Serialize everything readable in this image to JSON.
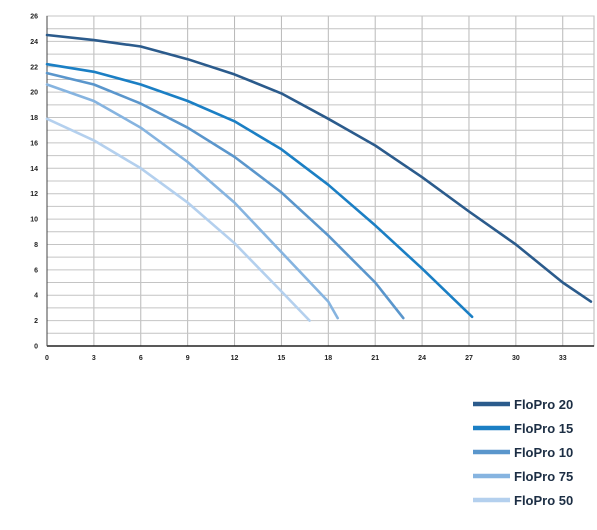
{
  "chart_data": {
    "type": "line",
    "title": "",
    "xlabel": "",
    "ylabel": "",
    "xlim": [
      0,
      35
    ],
    "ylim": [
      0,
      26
    ],
    "xticks": [
      0,
      3,
      6,
      9,
      12,
      15,
      18,
      21,
      24,
      27,
      30,
      33
    ],
    "yticks": [
      0,
      2,
      4,
      6,
      8,
      10,
      12,
      14,
      16,
      18,
      20,
      22,
      24,
      26
    ],
    "grid": true,
    "legend_position": "bottom-right",
    "series": [
      {
        "name": "FloPro 20",
        "color": "#2b5b8c",
        "points": [
          [
            0,
            24.5
          ],
          [
            3,
            24.1
          ],
          [
            6,
            23.6
          ],
          [
            9,
            22.6
          ],
          [
            12,
            21.4
          ],
          [
            15,
            19.9
          ],
          [
            18,
            17.9
          ],
          [
            21,
            15.8
          ],
          [
            24,
            13.3
          ],
          [
            27,
            10.6
          ],
          [
            30,
            8.0
          ],
          [
            33,
            5.0
          ],
          [
            34.8,
            3.5
          ]
        ]
      },
      {
        "name": "FloPro 15",
        "color": "#1b7fc4",
        "points": [
          [
            0,
            22.2
          ],
          [
            3,
            21.6
          ],
          [
            6,
            20.6
          ],
          [
            9,
            19.3
          ],
          [
            12,
            17.7
          ],
          [
            15,
            15.5
          ],
          [
            18,
            12.7
          ],
          [
            21,
            9.5
          ],
          [
            24,
            6.1
          ],
          [
            27.2,
            2.3
          ]
        ]
      },
      {
        "name": "FloPro 10",
        "color": "#5a96cc",
        "points": [
          [
            0,
            21.5
          ],
          [
            3,
            20.6
          ],
          [
            6,
            19.1
          ],
          [
            9,
            17.2
          ],
          [
            12,
            14.9
          ],
          [
            15,
            12.1
          ],
          [
            18,
            8.7
          ],
          [
            21,
            5.0
          ],
          [
            22.8,
            2.2
          ]
        ]
      },
      {
        "name": "FloPro 75",
        "color": "#86b4e0",
        "points": [
          [
            0,
            20.6
          ],
          [
            3,
            19.3
          ],
          [
            6,
            17.2
          ],
          [
            9,
            14.5
          ],
          [
            12,
            11.3
          ],
          [
            15,
            7.4
          ],
          [
            18,
            3.5
          ],
          [
            18.6,
            2.2
          ]
        ]
      },
      {
        "name": "FloPro 50",
        "color": "#b4d0ee",
        "points": [
          [
            0,
            17.9
          ],
          [
            3,
            16.2
          ],
          [
            6,
            14.0
          ],
          [
            9,
            11.3
          ],
          [
            12,
            8.1
          ],
          [
            15,
            4.3
          ],
          [
            16.8,
            2.0
          ]
        ]
      }
    ]
  }
}
